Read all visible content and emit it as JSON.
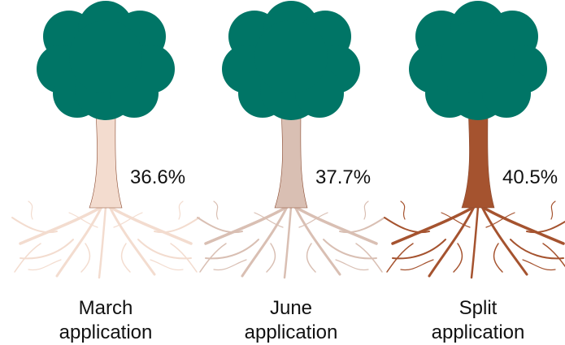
{
  "trees": [
    {
      "value": "36.6%",
      "label": "March application",
      "trunk_color": "#f3dccf"
    },
    {
      "value": "37.7%",
      "label": "June application",
      "trunk_color": "#d9bfb3"
    },
    {
      "value": "40.5%",
      "label": "Split application",
      "trunk_color": "#a5532f"
    }
  ],
  "canopy_color": "#007566"
}
